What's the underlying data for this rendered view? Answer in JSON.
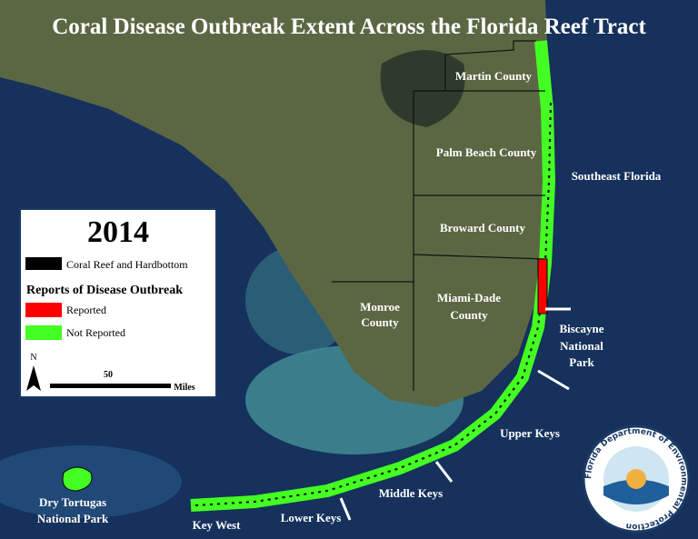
{
  "header": {
    "title": "Coral Disease Outbreak Extent Across the Florida Reef Tract"
  },
  "legend": {
    "year": "2014",
    "habitat": "Coral Reef and Hardbottom",
    "section_title": "Reports of Disease Outbreak",
    "reported": "Reported",
    "not_reported": "Not Reported",
    "north": "N",
    "scale_value": "50",
    "scale_unit": "Miles"
  },
  "labels": {
    "martin": [
      "Martin County"
    ],
    "palm_beach": [
      "Palm Beach County"
    ],
    "southeast": [
      "Southeast Florida"
    ],
    "broward": [
      "Broward County"
    ],
    "miami_dade": [
      "Miami-Dade",
      "County"
    ],
    "monroe": [
      "Monroe",
      "County"
    ],
    "biscayne": [
      "Biscayne",
      "National",
      "Park"
    ],
    "upper_keys": [
      "Upper Keys"
    ],
    "middle_keys": [
      "Middle Keys"
    ],
    "lower_keys": [
      "Lower Keys"
    ],
    "key_west": [
      "Key West"
    ],
    "dry_tortugas": [
      "Dry Tortugas",
      "National Park"
    ]
  },
  "logo": {
    "text": "Florida Department of Environmental Protection"
  }
}
